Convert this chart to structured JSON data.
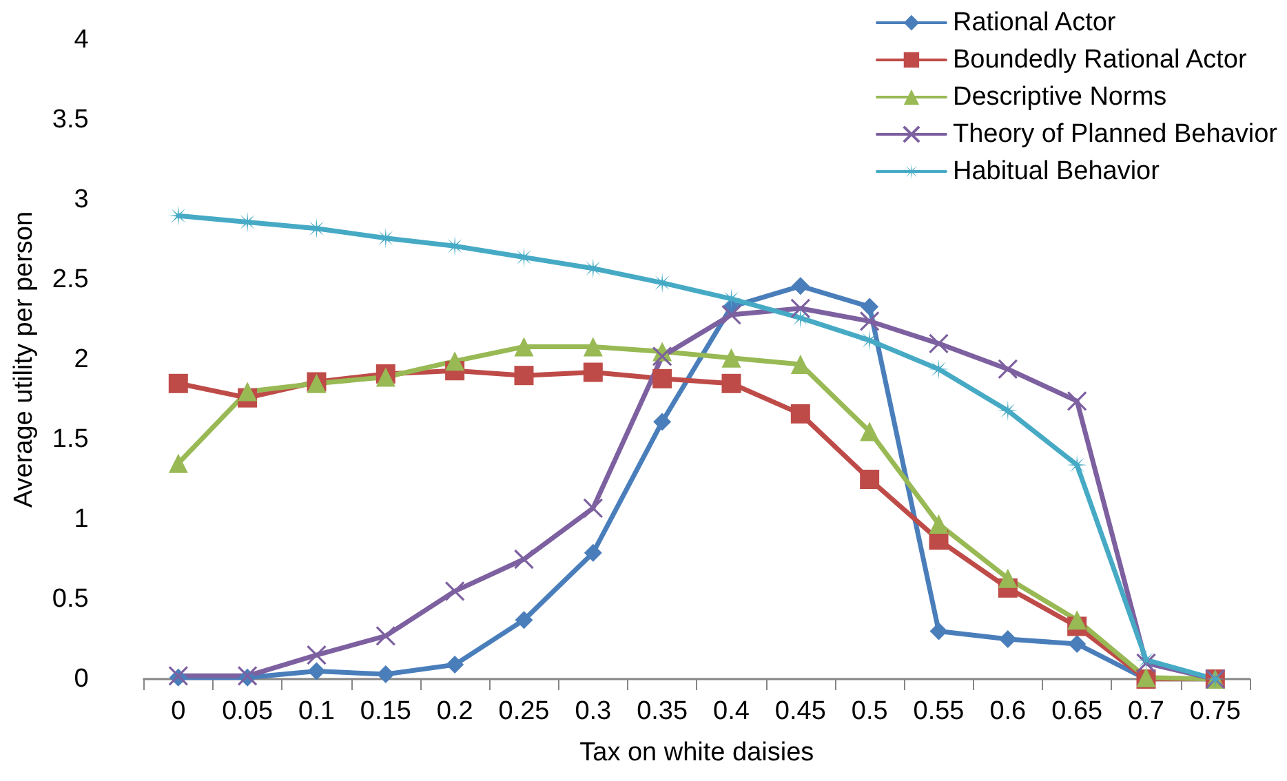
{
  "chart_data": {
    "type": "line",
    "xlabel": "Tax on white daisies",
    "ylabel": "Average utility per person",
    "categories": [
      "0",
      "0.05",
      "0.1",
      "0.15",
      "0.2",
      "0.25",
      "0.3",
      "0.35",
      "0.4",
      "0.45",
      "0.5",
      "0.55",
      "0.6",
      "0.65",
      "0.7",
      "0.75"
    ],
    "series": [
      {
        "name": "Rational Actor",
        "color": "#4a7ebb",
        "marker": "diamond",
        "values": [
          0.01,
          0.01,
          0.05,
          0.03,
          0.09,
          0.37,
          0.79,
          1.61,
          2.33,
          2.46,
          2.33,
          0.3,
          0.25,
          0.22,
          0,
          0
        ]
      },
      {
        "name": "Boundedly Rational Actor",
        "color": "#be4b48",
        "marker": "square",
        "values": [
          1.85,
          1.76,
          1.86,
          1.91,
          1.93,
          1.9,
          1.92,
          1.88,
          1.85,
          1.66,
          1.25,
          0.87,
          0.57,
          0.33,
          0,
          0
        ]
      },
      {
        "name": "Descriptive Norms",
        "color": "#98b954",
        "marker": "triangle",
        "values": [
          1.35,
          1.8,
          1.85,
          1.89,
          1.99,
          2.08,
          2.08,
          2.05,
          2.01,
          1.97,
          1.55,
          0.97,
          0.63,
          0.37,
          0.01,
          0
        ]
      },
      {
        "name": "Theory of Planned Behavior",
        "color": "#7d60a0",
        "marker": "cross",
        "values": [
          0.02,
          0.02,
          0.15,
          0.27,
          0.55,
          0.75,
          1.07,
          2.02,
          2.28,
          2.32,
          2.24,
          2.1,
          1.94,
          1.74,
          0.1,
          0
        ]
      },
      {
        "name": "Habitual Behavior",
        "color": "#46aac5",
        "marker": "star",
        "values": [
          2.9,
          2.86,
          2.82,
          2.76,
          2.71,
          2.64,
          2.57,
          2.48,
          2.38,
          2.26,
          2.12,
          1.94,
          1.68,
          1.34,
          0.12,
          0
        ]
      }
    ],
    "ylim": [
      0,
      4
    ],
    "yticks": [
      0,
      0.5,
      1,
      1.5,
      2,
      2.5,
      3,
      3.5,
      4
    ],
    "grid": false,
    "legend": "top right",
    "line_style": "solid"
  }
}
